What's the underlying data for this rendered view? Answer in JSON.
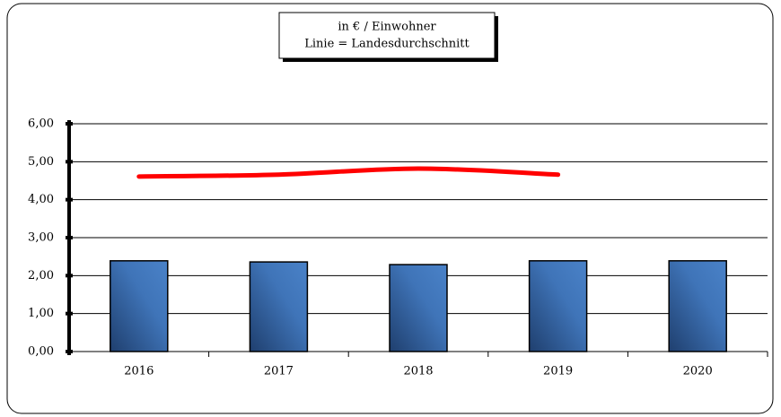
{
  "chart_data": {
    "type": "bar",
    "title_lines": [
      "in € / Einwohner",
      "Linie = Landesdurchschnitt"
    ],
    "categories": [
      "2016",
      "2017",
      "2018",
      "2019",
      "2020"
    ],
    "series": [
      {
        "type": "bar",
        "color": "#3f74b8",
        "values": [
          2.39,
          2.36,
          2.29,
          2.39,
          2.39
        ]
      },
      {
        "type": "line",
        "color": "#ff0000",
        "values": [
          4.61,
          4.66,
          4.82,
          4.66,
          null
        ]
      }
    ],
    "ylim": [
      0,
      6
    ],
    "yticks": [
      {
        "value": 0,
        "label": "0,00"
      },
      {
        "value": 1,
        "label": "1,00"
      },
      {
        "value": 2,
        "label": "2,00"
      },
      {
        "value": 3,
        "label": "3,00"
      },
      {
        "value": 4,
        "label": "4,00"
      },
      {
        "value": 5,
        "label": "5,00"
      },
      {
        "value": 6,
        "label": "6,00"
      }
    ],
    "grid": true
  }
}
